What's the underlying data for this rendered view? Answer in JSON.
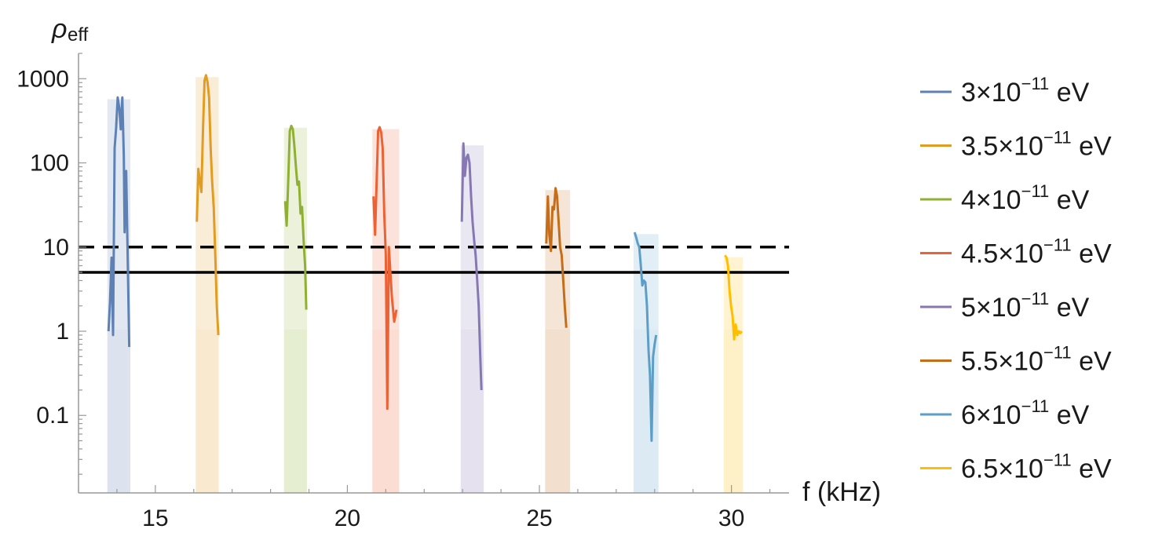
{
  "chart_data": {
    "type": "line",
    "xlabel": "f (kHz)",
    "ylabel_main": "ρ",
    "ylabel_sub": "eff",
    "y_scale": "log",
    "xlim": [
      13.0,
      31.5
    ],
    "ylim": [
      0.012,
      2000
    ],
    "x_ticks": [
      15,
      20,
      25,
      30
    ],
    "y_ticks": [
      {
        "value": 0.1,
        "label": "0.1"
      },
      {
        "value": 1,
        "label": "1"
      },
      {
        "value": 10,
        "label": "10"
      },
      {
        "value": 100,
        "label": "100"
      },
      {
        "value": 1000,
        "label": "1000"
      }
    ],
    "grid": false,
    "legend_position": "right",
    "reference_lines": [
      {
        "y": 10,
        "style": "dashed",
        "color": "#000000"
      },
      {
        "y": 5,
        "style": "solid",
        "color": "#000000"
      }
    ],
    "series": [
      {
        "name_base": "3×10",
        "name_exp": "−11",
        "name_unit": " eV",
        "color": "#5e81b5",
        "band": [
          13.75,
          14.35
        ],
        "points": [
          [
            13.78,
            1.0
          ],
          [
            13.82,
            2.2
          ],
          [
            13.86,
            7.5
          ],
          [
            13.9,
            0.9
          ],
          [
            13.94,
            150
          ],
          [
            13.98,
            260
          ],
          [
            14.02,
            600
          ],
          [
            14.06,
            450
          ],
          [
            14.1,
            250
          ],
          [
            14.14,
            600
          ],
          [
            14.18,
            120
          ],
          [
            14.2,
            15
          ],
          [
            14.24,
            80
          ],
          [
            14.28,
            8
          ],
          [
            14.32,
            0.65
          ]
        ]
      },
      {
        "name_base": "3.5×10",
        "name_exp": "−11",
        "name_unit": " eV",
        "color": "#e19c24",
        "band": [
          16.05,
          16.65
        ],
        "points": [
          [
            16.08,
            20
          ],
          [
            16.12,
            85
          ],
          [
            16.16,
            60
          ],
          [
            16.2,
            45
          ],
          [
            16.24,
            240
          ],
          [
            16.28,
            950
          ],
          [
            16.32,
            1100
          ],
          [
            16.36,
            900
          ],
          [
            16.4,
            600
          ],
          [
            16.44,
            150
          ],
          [
            16.48,
            60
          ],
          [
            16.52,
            30
          ],
          [
            16.56,
            8
          ],
          [
            16.6,
            2
          ],
          [
            16.64,
            0.9
          ]
        ]
      },
      {
        "name_base": "4×10",
        "name_exp": "−11",
        "name_unit": " eV",
        "color": "#8fb032",
        "band": [
          18.35,
          18.95
        ],
        "points": [
          [
            18.38,
            35
          ],
          [
            18.42,
            18
          ],
          [
            18.46,
            60
          ],
          [
            18.5,
            240
          ],
          [
            18.54,
            275
          ],
          [
            18.58,
            250
          ],
          [
            18.62,
            160
          ],
          [
            18.66,
            90
          ],
          [
            18.7,
            55
          ],
          [
            18.74,
            60
          ],
          [
            18.78,
            25
          ],
          [
            18.82,
            30
          ],
          [
            18.86,
            12
          ],
          [
            18.9,
            6
          ],
          [
            18.93,
            1.8
          ]
        ]
      },
      {
        "name_base": "4.5×10",
        "name_exp": "−11",
        "name_unit": " eV",
        "color": "#eb6235",
        "band": [
          20.65,
          21.35
        ],
        "points": [
          [
            20.68,
            40
          ],
          [
            20.72,
            14
          ],
          [
            20.76,
            55
          ],
          [
            20.8,
            240
          ],
          [
            20.84,
            265
          ],
          [
            20.88,
            230
          ],
          [
            20.92,
            150
          ],
          [
            20.96,
            25
          ],
          [
            21.0,
            8
          ],
          [
            21.04,
            0.12
          ],
          [
            21.08,
            10
          ],
          [
            21.12,
            5
          ],
          [
            21.16,
            2.5
          ],
          [
            21.22,
            1.3
          ],
          [
            21.28,
            1.8
          ]
        ]
      },
      {
        "name_base": "5×10",
        "name_exp": "−11",
        "name_unit": " eV",
        "color": "#8778b3",
        "band": [
          22.95,
          23.55
        ],
        "points": [
          [
            22.98,
            20
          ],
          [
            23.02,
            170
          ],
          [
            23.06,
            70
          ],
          [
            23.1,
            115
          ],
          [
            23.14,
            125
          ],
          [
            23.18,
            100
          ],
          [
            23.22,
            40
          ],
          [
            23.26,
            20
          ],
          [
            23.3,
            12
          ],
          [
            23.34,
            8
          ],
          [
            23.38,
            4
          ],
          [
            23.42,
            2
          ],
          [
            23.46,
            0.5
          ],
          [
            23.49,
            0.2
          ]
        ]
      },
      {
        "name_base": "5.5×10",
        "name_exp": "−11",
        "name_unit": " eV",
        "color": "#c56e1a",
        "band": [
          25.15,
          25.8
        ],
        "points": [
          [
            25.18,
            11
          ],
          [
            25.22,
            40
          ],
          [
            25.26,
            14
          ],
          [
            25.3,
            9
          ],
          [
            25.34,
            30
          ],
          [
            25.38,
            28
          ],
          [
            25.42,
            50
          ],
          [
            25.46,
            40
          ],
          [
            25.5,
            20
          ],
          [
            25.54,
            10
          ],
          [
            25.58,
            8
          ],
          [
            25.62,
            4
          ],
          [
            25.66,
            2
          ],
          [
            25.7,
            1.1
          ]
        ]
      },
      {
        "name_base": "6×10",
        "name_exp": "−11",
        "name_unit": " eV",
        "color": "#5d9ec7",
        "band": [
          27.45,
          28.1
        ],
        "points": [
          [
            27.48,
            15
          ],
          [
            27.52,
            13
          ],
          [
            27.56,
            11
          ],
          [
            27.6,
            10
          ],
          [
            27.64,
            6
          ],
          [
            27.68,
            3.5
          ],
          [
            27.72,
            4
          ],
          [
            27.76,
            3.8
          ],
          [
            27.8,
            2
          ],
          [
            27.84,
            0.6
          ],
          [
            27.88,
            0.3
          ],
          [
            27.92,
            0.05
          ],
          [
            27.96,
            0.5
          ],
          [
            28.0,
            0.7
          ],
          [
            28.04,
            0.9
          ]
        ]
      },
      {
        "name_base": "6.5×10",
        "name_exp": "−11",
        "name_unit": " eV",
        "color": "#ffbf00",
        "band": [
          29.8,
          30.3
        ],
        "points": [
          [
            29.83,
            8
          ],
          [
            29.87,
            7.5
          ],
          [
            29.91,
            6
          ],
          [
            29.95,
            3
          ],
          [
            29.99,
            2
          ],
          [
            30.03,
            1.5
          ],
          [
            30.07,
            0.8
          ],
          [
            30.11,
            1.2
          ],
          [
            30.15,
            0.9
          ],
          [
            30.19,
            1.0
          ],
          [
            30.23,
            0.95
          ],
          [
            30.27,
            1.0
          ]
        ]
      }
    ]
  }
}
